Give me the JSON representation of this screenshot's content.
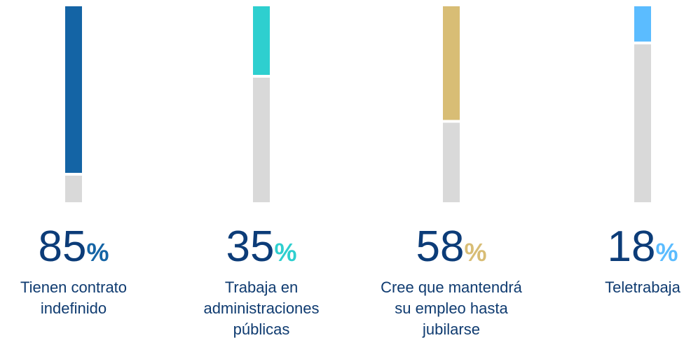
{
  "chart_data": {
    "type": "bar",
    "categories": [
      [
        "Tienen contrato",
        "indefinido"
      ],
      [
        "Trabaja en",
        "administraciones",
        "públicas"
      ],
      [
        "Cree que mantendrá",
        "su empleo hasta",
        "jubilarse"
      ],
      [
        "Teletrabaja"
      ]
    ],
    "values": [
      85,
      35,
      58,
      18
    ],
    "unit": "%",
    "colors": [
      "#1464a5",
      "#2ecfcf",
      "#d8bd75",
      "#5bbcff"
    ],
    "remainder_color": "#d9d9d9",
    "ylim": [
      0,
      100
    ]
  }
}
